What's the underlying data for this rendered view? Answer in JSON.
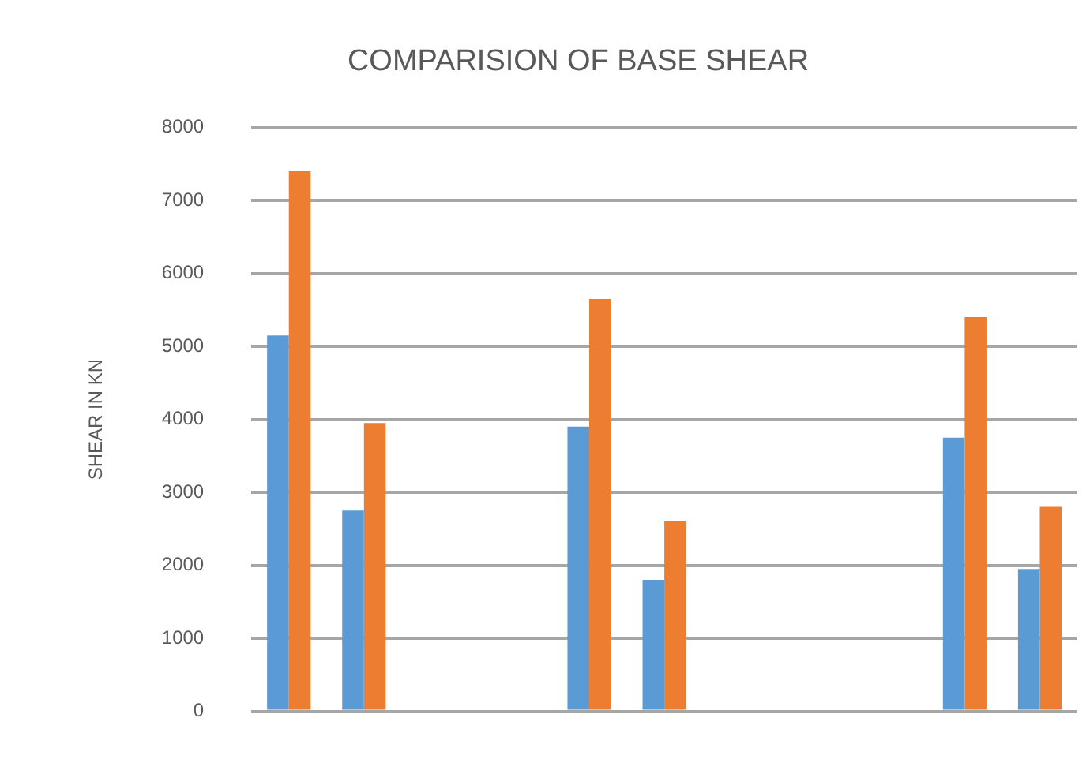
{
  "chart_data": {
    "type": "bar",
    "title": "COMPARISION OF BASE SHEAR",
    "ylabel": "SHEAR IN KN",
    "categories": [
      null,
      null,
      null,
      null,
      null,
      null,
      null,
      null,
      null,
      null,
      null
    ],
    "series": [
      {
        "color": "#5b9bd5",
        "values": [
          5150,
          2750,
          null,
          null,
          3900,
          1800,
          null,
          null,
          null,
          3750,
          1950
        ]
      },
      {
        "color": "#ed7d31",
        "values": [
          7400,
          3950,
          null,
          null,
          5650,
          2600,
          null,
          null,
          null,
          5400,
          2800
        ]
      }
    ],
    "ylim": [
      0,
      8000
    ],
    "yticks": [
      0,
      1000,
      2000,
      3000,
      4000,
      5000,
      6000,
      7000,
      8000
    ],
    "grid": "y",
    "legend": false,
    "tick_labels": "y"
  }
}
